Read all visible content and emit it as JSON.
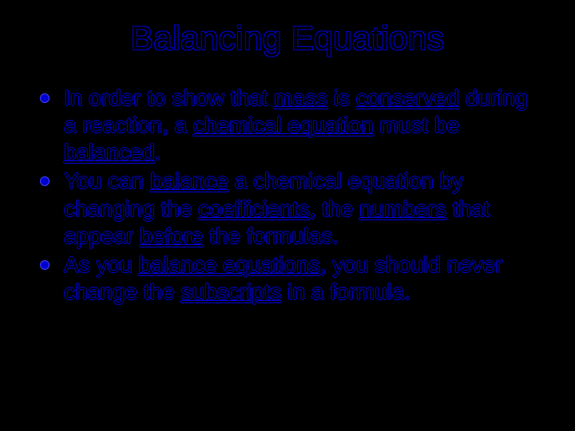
{
  "colors": {
    "background": "#000000",
    "text_outline": "#0000cc",
    "text_front": "#000000",
    "bullet_fill": "#0000cc"
  },
  "typography": {
    "title_fontsize": 42,
    "body_fontsize": 28,
    "font_family": "Arial"
  },
  "title": "Balancing Equations",
  "bullets": [
    {
      "segments": [
        {
          "t": "In order to show that ",
          "u": false
        },
        {
          "t": "mass",
          "u": true
        },
        {
          "t": " is ",
          "u": false
        },
        {
          "t": "conserved",
          "u": true
        },
        {
          "t": " during a reaction, a ",
          "u": false
        },
        {
          "t": "chemical equation",
          "u": true
        },
        {
          "t": " must be ",
          "u": false
        },
        {
          "t": "balanced",
          "u": true
        },
        {
          "t": ".",
          "u": false
        }
      ]
    },
    {
      "segments": [
        {
          "t": "You can ",
          "u": false
        },
        {
          "t": "balance",
          "u": true
        },
        {
          "t": " a chemical equation by changing the ",
          "u": false
        },
        {
          "t": "coefficients",
          "u": true
        },
        {
          "t": ", the ",
          "u": false
        },
        {
          "t": "numbers",
          "u": true
        },
        {
          "t": " that appear ",
          "u": false
        },
        {
          "t": "before",
          "u": true
        },
        {
          "t": " the formulas.",
          "u": false
        }
      ]
    },
    {
      "segments": [
        {
          "t": "As you ",
          "u": false
        },
        {
          "t": "balance equations",
          "u": true
        },
        {
          "t": ", you should never change the ",
          "u": false
        },
        {
          "t": "subscripts",
          "u": true
        },
        {
          "t": " in a formula.",
          "u": false
        }
      ]
    }
  ]
}
